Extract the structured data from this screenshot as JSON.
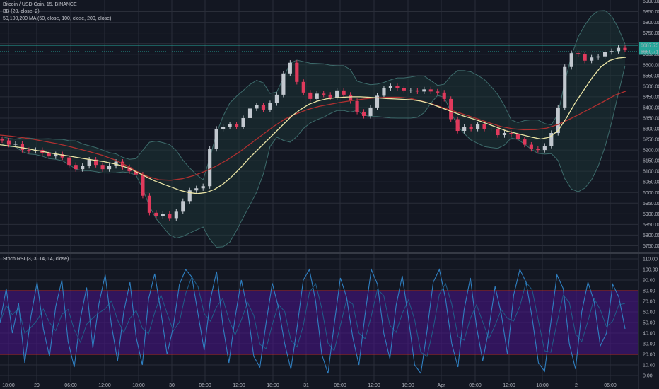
{
  "legend": {
    "symbol": "Bitcoin / USD Coin, 15, BINANCE",
    "bb": "BB (20, close, 2)",
    "ma": "50,100,200 MA (50, close, 100, close, 200, close)"
  },
  "rsi_pane": {
    "label": "Stoch RSI (3, 3, 14, 14, close)"
  },
  "price_badges": {
    "last_top": "6687.75",
    "last_bottom": "6659.71"
  },
  "colors": {
    "background": "#131722",
    "grid": "#2a2e39",
    "up": "#c2c8cf",
    "down": "#e03a5c",
    "bb_line": "#3d6b6b",
    "bb_fill": "#1c3a3a",
    "ma50": "#ebe5a6",
    "ma100": "#a3b4c8",
    "ma200": "#b03030",
    "stoch_k": "#2f7fc1",
    "stoch_d": "#1f5d8a",
    "rsi_band": "#4a148c",
    "band_line": "#b02a3a",
    "badge": "#26a69a"
  },
  "chart_data": [
    {
      "type": "candlestick",
      "title": "Bitcoin / USD Coin, 15, BINANCE",
      "x_ticks": [
        "18:00",
        "29",
        "06:00",
        "12:00",
        "18:00",
        "30",
        "06:00",
        "12:00",
        "18:00",
        "31",
        "06:00",
        "12:00",
        "18:00",
        "Apr",
        "06:00",
        "12:00",
        "18:00",
        "2",
        "06:00"
      ],
      "y_ticks": [
        5750,
        5800,
        5850,
        5900,
        5950,
        6000,
        6050,
        6100,
        6150,
        6200,
        6250,
        6300,
        6350,
        6400,
        6450,
        6500,
        6550,
        6600,
        6650,
        6700,
        6750,
        6800,
        6850,
        6900
      ],
      "ylim": [
        5725,
        6905
      ],
      "series": [
        {
          "name": "Close",
          "values": [
            6245,
            6225,
            6230,
            6200,
            6195,
            6200,
            6185,
            6170,
            6180,
            6165,
            6130,
            6110,
            6125,
            6155,
            6130,
            6110,
            6125,
            6145,
            6120,
            6100,
            6085,
            5985,
            5905,
            5890,
            5900,
            5880,
            5910,
            5960,
            6010,
            6020,
            6030,
            6205,
            6300,
            6310,
            6320,
            6310,
            6350,
            6395,
            6410,
            6390,
            6420,
            6460,
            6560,
            6610,
            6520,
            6470,
            6440,
            6465,
            6460,
            6445,
            6480,
            6460,
            6430,
            6380,
            6360,
            6400,
            6455,
            6490,
            6500,
            6490,
            6480,
            6480,
            6475,
            6485,
            6475,
            6470,
            6440,
            6345,
            6290,
            6310,
            6300,
            6320,
            6300,
            6300,
            6270,
            6280,
            6275,
            6250,
            6225,
            6205,
            6200,
            6220,
            6280,
            6400,
            6590,
            6655,
            6650,
            6620,
            6635,
            6640,
            6660,
            6665,
            6680,
            6672
          ]
        },
        {
          "name": "MA 50",
          "values": [
            6225,
            6220,
            6214,
            6208,
            6200,
            6193,
            6185,
            6178,
            6172,
            6165,
            6158,
            6152,
            6146,
            6138,
            6128,
            6115,
            6095,
            6075,
            6055,
            6040,
            6025,
            6010,
            6000,
            5995,
            6000,
            6015,
            6040,
            6075,
            6115,
            6160,
            6200,
            6240,
            6280,
            6320,
            6360,
            6390,
            6415,
            6430,
            6440,
            6445,
            6448,
            6450,
            6450,
            6448,
            6445,
            6442,
            6440,
            6438,
            6436,
            6430,
            6420,
            6405,
            6390,
            6375,
            6360,
            6348,
            6335,
            6320,
            6305,
            6290,
            6280,
            6270,
            6260,
            6252,
            6260,
            6290,
            6350,
            6420,
            6480,
            6540,
            6590,
            6620,
            6632,
            6636
          ]
        },
        {
          "name": "MA 200",
          "values": [
            6270,
            6265,
            6258,
            6250,
            6240,
            6230,
            6218,
            6204,
            6190,
            6175,
            6155,
            6130,
            6100,
            6075,
            6060,
            6058,
            6065,
            6080,
            6100,
            6125,
            6155,
            6190,
            6230,
            6270,
            6310,
            6345,
            6370,
            6390,
            6405,
            6415,
            6425,
            6433,
            6440,
            6445,
            6448,
            6448,
            6443,
            6430,
            6415,
            6397,
            6380,
            6363,
            6345,
            6327,
            6310,
            6300,
            6295,
            6296,
            6303,
            6320,
            6345,
            6372,
            6400,
            6428,
            6458,
            6478
          ]
        }
      ]
    },
    {
      "type": "line",
      "title": "Stoch RSI (3, 3, 14, 14, close)",
      "y_ticks": [
        0,
        10,
        20,
        30,
        40,
        50,
        60,
        70,
        80,
        90,
        100,
        110
      ],
      "ylim": [
        -6,
        112
      ],
      "bands": [
        20,
        80
      ],
      "series": [
        {
          "name": "K",
          "values": [
            50,
            82,
            40,
            68,
            12,
            56,
            88,
            44,
            18,
            65,
            90,
            32,
            8,
            54,
            83,
            26,
            68,
            95,
            48,
            14,
            60,
            88,
            36,
            10,
            72,
            96,
            60,
            20,
            46,
            86,
            100,
            93,
            58,
            24,
            72,
            98,
            48,
            12,
            55,
            90,
            62,
            18,
            8,
            50,
            87,
            64,
            30,
            6,
            45,
            90,
            100,
            70,
            20,
            2,
            48,
            92,
            74,
            36,
            10,
            58,
            100,
            86,
            40,
            16,
            66,
            94,
            54,
            10,
            2,
            42,
            88,
            100,
            72,
            30,
            8,
            62,
            92,
            46,
            14,
            44,
            84,
            58,
            20,
            76,
            100,
            88,
            54,
            12,
            4,
            50,
            95,
            82,
            30,
            6,
            60,
            88,
            70,
            28,
            40,
            86,
            74,
            44
          ]
        }
      ]
    }
  ]
}
